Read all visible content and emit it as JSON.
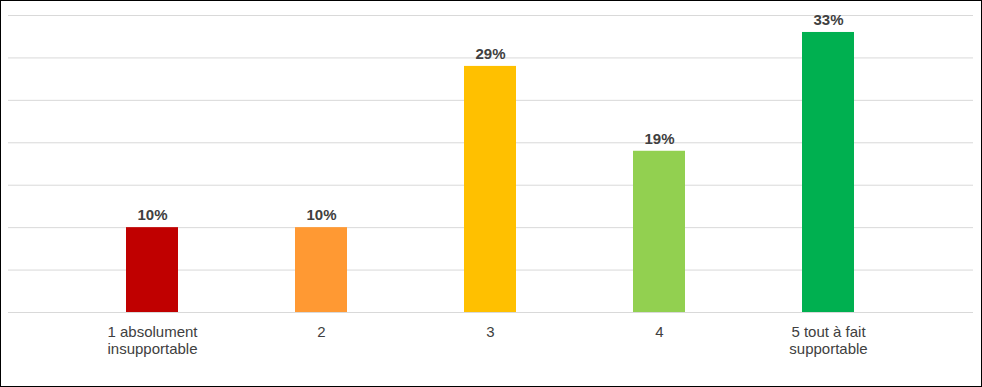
{
  "chart_data": {
    "type": "bar",
    "categories": [
      "1 absolument\ninsupportable",
      "2",
      "3",
      "4",
      "5 tout à fait\nsupportable"
    ],
    "values": [
      10,
      10,
      29,
      19,
      33
    ],
    "value_labels": [
      "10%",
      "10%",
      "29%",
      "19%",
      "33%"
    ],
    "colors": [
      "#c00000",
      "#ff9933",
      "#ffc000",
      "#92d050",
      "#00b050"
    ],
    "ylim": [
      0,
      35
    ],
    "yticks": [
      0,
      5,
      10,
      15,
      20,
      25,
      30,
      35
    ],
    "grid": true,
    "data_labels": true,
    "tick_labels": "x"
  }
}
